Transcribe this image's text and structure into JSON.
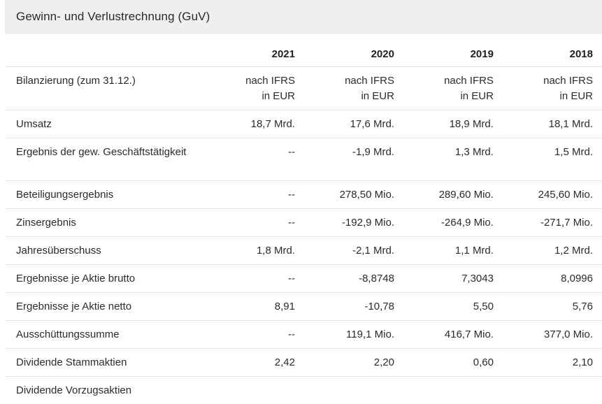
{
  "header": {
    "title": "Gewinn- und Verlustrechnung (GuV)"
  },
  "table": {
    "columns": [
      "",
      "2021",
      "2020",
      "2019",
      "2018"
    ],
    "rows": [
      {
        "label": "Bilanzierung (zum 31.12.)",
        "values": [
          "nach IFRS\nin EUR",
          "nach IFRS\nin EUR",
          "nach IFRS\nin EUR",
          "nach IFRS\nin EUR"
        ]
      },
      {
        "label": "Umsatz",
        "values": [
          "18,7 Mrd.",
          "17,6 Mrd.",
          "18,9 Mrd.",
          "18,1 Mrd."
        ]
      },
      {
        "label": "Ergebnis der gew. Geschäftstätigkeit",
        "values": [
          "--",
          "-1,9 Mrd.",
          "1,3 Mrd.",
          "1,5 Mrd."
        ]
      },
      {
        "label": "Beteiligungsergebnis",
        "values": [
          "--",
          "278,50 Mio.",
          "289,60 Mio.",
          "245,60 Mio."
        ]
      },
      {
        "label": "Zinsergebnis",
        "values": [
          "--",
          "-192,9 Mio.",
          "-264,9 Mio.",
          "-271,7 Mio."
        ]
      },
      {
        "label": "Jahresüberschuss",
        "values": [
          "1,8 Mrd.",
          "-2,1 Mrd.",
          "1,1 Mrd.",
          "1,2 Mrd."
        ]
      },
      {
        "label": "Ergebnisse je Aktie brutto",
        "values": [
          "--",
          "-8,8748",
          "7,3043",
          "8,0996"
        ]
      },
      {
        "label": "Ergebnisse je Aktie netto",
        "values": [
          "8,91",
          "-10,78",
          "5,50",
          "5,76"
        ]
      },
      {
        "label": "Ausschüttungssumme",
        "values": [
          "--",
          "119,1 Mio.",
          "416,7 Mio.",
          "377,0 Mio."
        ]
      },
      {
        "label": "Dividende Stammaktien",
        "values": [
          "2,42",
          "2,20",
          "0,60",
          "2,10"
        ]
      },
      {
        "label": "Dividende Vorzugsaktien",
        "values": [
          "",
          "",
          "",
          ""
        ]
      }
    ]
  }
}
